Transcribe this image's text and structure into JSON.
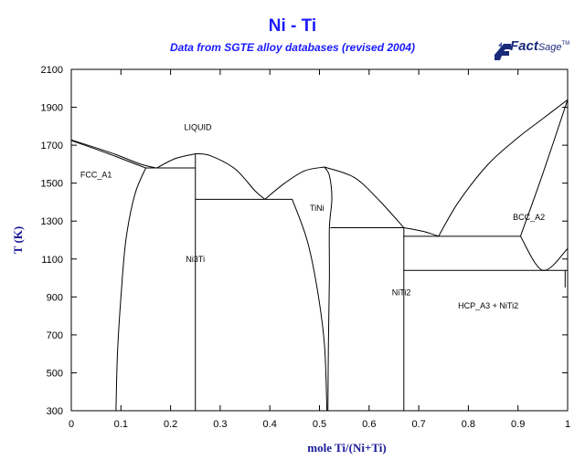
{
  "header": {
    "title": "Ni - Ti",
    "subtitle": "Data from SGTE alloy databases (revised 2004)"
  },
  "logo": {
    "text_main": "Fact",
    "text_sub": "Sage",
    "trademark": "TM",
    "color": "#1a2a7a"
  },
  "colors": {
    "title": "#1a1aff",
    "axis_label": "#1a1a99",
    "lines": "#000000"
  },
  "chart_data": {
    "type": "phase-diagram",
    "xlabel": "mole Ti/(Ni+Ti)",
    "ylabel": "T (K)",
    "xlim": [
      0,
      1
    ],
    "ylim": [
      300,
      2100
    ],
    "x_ticks": [
      0,
      0.1,
      0.2,
      0.3,
      0.4,
      0.5,
      0.6,
      0.7,
      0.8,
      0.9,
      1
    ],
    "x_tick_labels": [
      "0",
      "0.1",
      "0.2",
      "0.3",
      "0.4",
      "0.5",
      "0.6",
      "0.7",
      "0.8",
      "0.9",
      "1"
    ],
    "y_ticks": [
      300,
      500,
      700,
      900,
      1100,
      1300,
      1500,
      1700,
      1900,
      2100
    ],
    "y_tick_labels": [
      "300",
      "500",
      "700",
      "900",
      "1100",
      "1300",
      "1500",
      "1700",
      "1900",
      "2100"
    ],
    "grid": false,
    "phase_labels": [
      {
        "text": "LIQUID",
        "x": 0.255,
        "y": 1780
      },
      {
        "text": "FCC_A1",
        "x": 0.05,
        "y": 1530
      },
      {
        "text": "TiNi",
        "x": 0.495,
        "y": 1355
      },
      {
        "text": "BCC_A2",
        "x": 0.922,
        "y": 1305
      },
      {
        "text": "Ni3Ti",
        "x": 0.25,
        "y": 1085
      },
      {
        "text": "NiTi2",
        "x": 0.665,
        "y": 910
      },
      {
        "text": "HCP_A3 + NiTi2",
        "x": 0.84,
        "y": 840
      }
    ],
    "boundaries": [
      {
        "name": "liquidus-ni-side",
        "points": [
          [
            0,
            1728
          ],
          [
            0.08,
            1660
          ],
          [
            0.14,
            1600
          ],
          [
            0.172,
            1580
          ]
        ]
      },
      {
        "name": "solidus-fcc-upper",
        "points": [
          [
            0,
            1725
          ],
          [
            0.07,
            1660
          ],
          [
            0.13,
            1600
          ],
          [
            0.15,
            1580
          ]
        ]
      },
      {
        "name": "fcc-solvus",
        "points": [
          [
            0.15,
            1580
          ],
          [
            0.128,
            1440
          ],
          [
            0.11,
            1200
          ],
          [
            0.1,
            900
          ],
          [
            0.093,
            600
          ],
          [
            0.09,
            300
          ]
        ]
      },
      {
        "name": "eutectic-fcc-ni3ti",
        "points": [
          [
            0.15,
            1580
          ],
          [
            0.25,
            1580
          ]
        ]
      },
      {
        "name": "liquidus-ni3ti-left",
        "points": [
          [
            0.172,
            1580
          ],
          [
            0.21,
            1630
          ],
          [
            0.25,
            1655
          ]
        ]
      },
      {
        "name": "liquidus-ni3ti-right",
        "points": [
          [
            0.25,
            1655
          ],
          [
            0.28,
            1645
          ],
          [
            0.33,
            1575
          ],
          [
            0.37,
            1460
          ],
          [
            0.39,
            1415
          ]
        ]
      },
      {
        "name": "ni3ti-line-compound",
        "points": [
          [
            0.25,
            1655
          ],
          [
            0.25,
            300
          ]
        ]
      },
      {
        "name": "eutectic-ni3ti-tini",
        "points": [
          [
            0.25,
            1415
          ],
          [
            0.445,
            1415
          ]
        ]
      },
      {
        "name": "liquidus-tini-left",
        "points": [
          [
            0.39,
            1415
          ],
          [
            0.43,
            1500
          ],
          [
            0.47,
            1565
          ],
          [
            0.51,
            1585
          ]
        ]
      },
      {
        "name": "liquidus-tini-right",
        "points": [
          [
            0.51,
            1585
          ],
          [
            0.57,
            1530
          ],
          [
            0.62,
            1410
          ],
          [
            0.67,
            1265
          ]
        ]
      },
      {
        "name": "tini-left-boundary",
        "points": [
          [
            0.445,
            1415
          ],
          [
            0.475,
            1200
          ],
          [
            0.495,
            950
          ],
          [
            0.51,
            650
          ],
          [
            0.515,
            300
          ]
        ]
      },
      {
        "name": "tini-right-boundary",
        "points": [
          [
            0.51,
            1585
          ],
          [
            0.52,
            1540
          ],
          [
            0.525,
            1420
          ],
          [
            0.52,
            1265
          ],
          [
            0.52,
            1000
          ],
          [
            0.518,
            650
          ],
          [
            0.517,
            300
          ]
        ]
      },
      {
        "name": "eutectoid-tini-nicti2",
        "points": [
          [
            0.522,
            1265
          ],
          [
            0.67,
            1265
          ]
        ]
      },
      {
        "name": "nicti2-line-compound",
        "points": [
          [
            0.67,
            1265
          ],
          [
            0.67,
            300
          ]
        ]
      },
      {
        "name": "liquidus-nicti2-peritectic",
        "points": [
          [
            0.67,
            1265
          ],
          [
            0.71,
            1245
          ],
          [
            0.74,
            1220
          ]
        ]
      },
      {
        "name": "liquidus-bcc",
        "points": [
          [
            0.74,
            1220
          ],
          [
            0.78,
            1400
          ],
          [
            0.84,
            1600
          ],
          [
            0.9,
            1740
          ],
          [
            0.95,
            1840
          ],
          [
            1.0,
            1940
          ]
        ]
      },
      {
        "name": "solidus-bcc",
        "points": [
          [
            0.905,
            1220
          ],
          [
            0.95,
            1550
          ],
          [
            1.0,
            1940
          ]
        ]
      },
      {
        "name": "peritectic-line",
        "points": [
          [
            0.67,
            1220
          ],
          [
            0.905,
            1220
          ]
        ]
      },
      {
        "name": "bcc-solvus",
        "points": [
          [
            0.905,
            1220
          ],
          [
            0.95,
            1040
          ],
          [
            1.0,
            1155
          ]
        ]
      },
      {
        "name": "eutectoid-line",
        "points": [
          [
            0.67,
            1040
          ],
          [
            1.0,
            1040
          ]
        ]
      },
      {
        "name": "hcp-solvus",
        "points": [
          [
            0.995,
            1040
          ],
          [
            0.995,
            950
          ]
        ]
      }
    ]
  }
}
